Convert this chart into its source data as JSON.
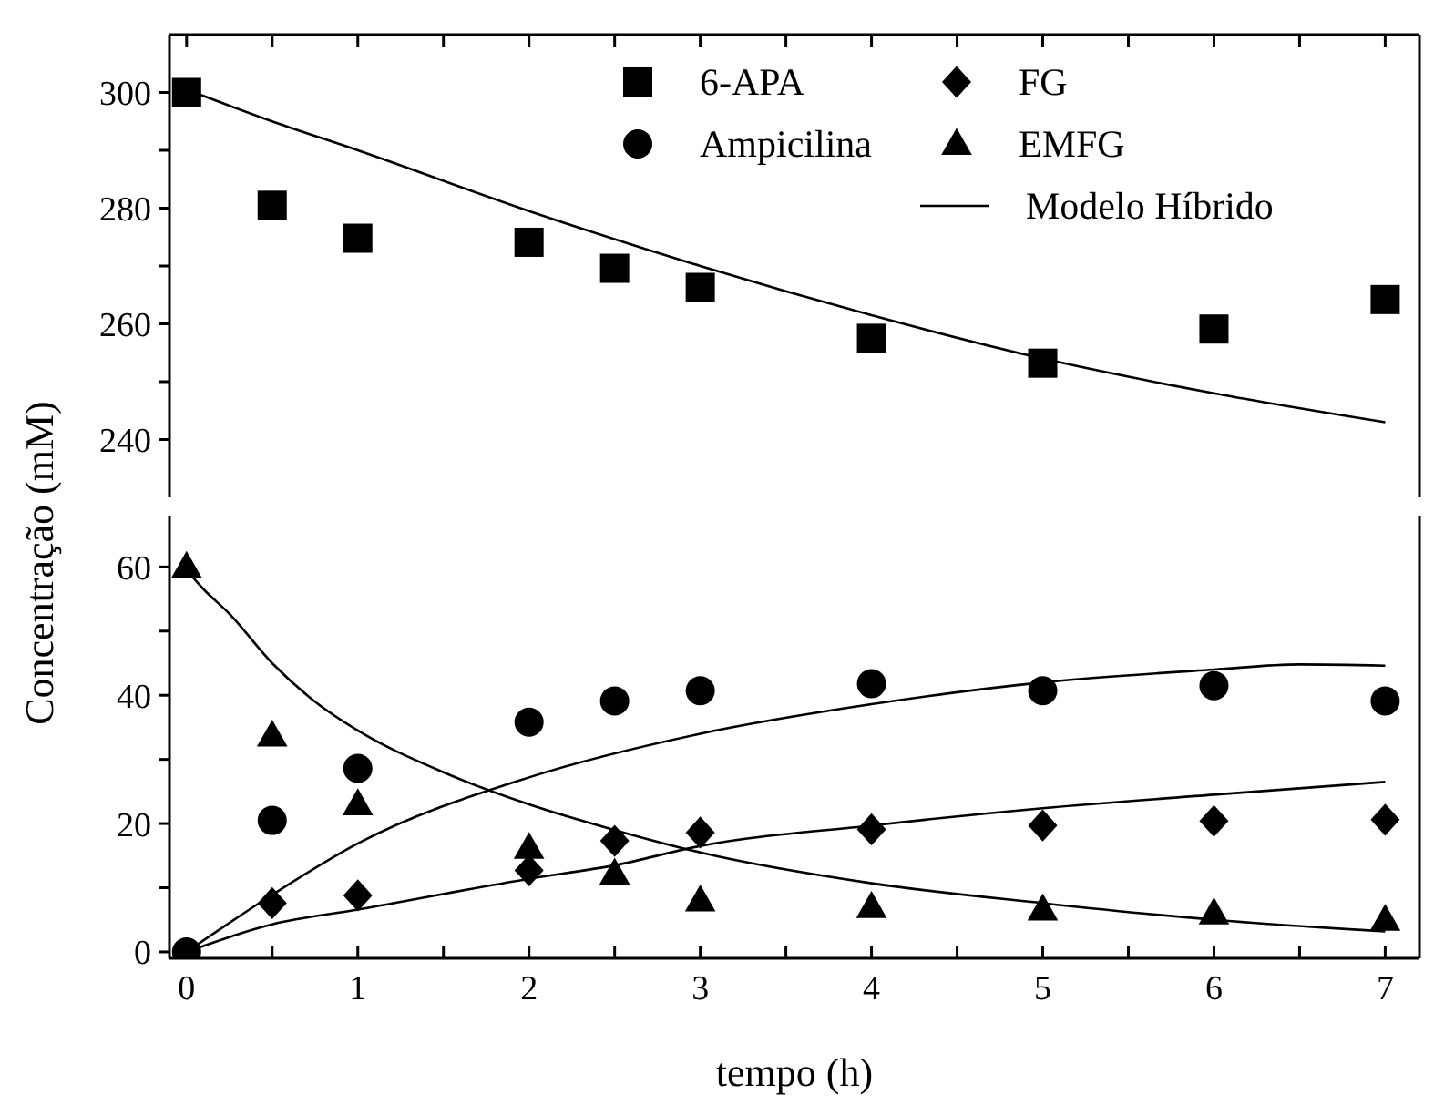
{
  "chart_data": [
    {
      "type": "scatter",
      "xlim": [
        -0.1,
        7.2
      ],
      "xticks": [
        0,
        {
          "value": 0.5,
          "label": null
        },
        1,
        {
          "value": 1.5,
          "label": null
        },
        2,
        {
          "value": 2.5,
          "label": null
        },
        3,
        {
          "value": 3.5,
          "label": null
        },
        4,
        {
          "value": 4.5,
          "label": null
        },
        5,
        {
          "value": 5.5,
          "label": null
        },
        6,
        {
          "value": 6.5,
          "label": null
        },
        7
      ],
      "ylim": [
        230,
        310
      ],
      "yticks": [
        240,
        {
          "value": 250,
          "label": null
        },
        260,
        {
          "value": 270,
          "label": null
        },
        280,
        {
          "value": 290,
          "label": null
        },
        300
      ],
      "tick_labels": "y",
      "legend": "top right",
      "series": [
        {
          "name": "6-APA",
          "marker": "square",
          "color": "#000000",
          "x": [
            0,
            0.5,
            1,
            2,
            2.5,
            3,
            4,
            5,
            6,
            7
          ],
          "values": [
            300,
            280.5,
            274.8,
            274.1,
            269.6,
            266.3,
            257.5,
            253.2,
            259.1,
            264.2
          ]
        },
        {
          "name": "Modelo Híbrido",
          "type": "line",
          "color": "#000000",
          "x": [
            0,
            0.5,
            1,
            2,
            3,
            4,
            5,
            6,
            7
          ],
          "values": [
            300.5,
            295,
            290,
            279.5,
            270,
            261.5,
            254,
            248,
            243
          ]
        }
      ]
    },
    {
      "type": "scatter",
      "xlabel": "tempo (h)",
      "ylabel": "Concentração (mM)",
      "xlim": [
        -0.1,
        7.2
      ],
      "xticks": [
        0,
        {
          "value": 0.5,
          "label": null
        },
        1,
        {
          "value": 1.5,
          "label": null
        },
        2,
        {
          "value": 2.5,
          "label": null
        },
        3,
        {
          "value": 3.5,
          "label": null
        },
        4,
        {
          "value": 4.5,
          "label": null
        },
        5,
        {
          "value": 5.5,
          "label": null
        },
        6,
        {
          "value": 6.5,
          "label": null
        },
        7
      ],
      "ylim": [
        -1,
        68
      ],
      "yticks": [
        0,
        {
          "value": 10,
          "label": null
        },
        20,
        {
          "value": 30,
          "label": null
        },
        40,
        {
          "value": 50,
          "label": null
        },
        60
      ],
      "legend": "top",
      "series": [
        {
          "name": "Ampicilina",
          "marker": "circle",
          "color": "#000000",
          "x": [
            0,
            0.5,
            1,
            2,
            2.5,
            3,
            4,
            5,
            6,
            7
          ],
          "values": [
            0,
            20.5,
            28.6,
            35.8,
            39.1,
            40.7,
            41.8,
            40.7,
            41.5,
            39.1
          ]
        },
        {
          "name": "FG",
          "marker": "diamond",
          "color": "#000000",
          "x": [
            0.5,
            1,
            2,
            2.5,
            3,
            4,
            5,
            6,
            7
          ],
          "values": [
            7.6,
            8.8,
            12.7,
            17.3,
            18.6,
            19.1,
            19.7,
            20.4,
            20.6
          ]
        },
        {
          "name": "EMFG",
          "marker": "triangle",
          "color": "#000000",
          "x": [
            0,
            0.5,
            1,
            2,
            2.5,
            3,
            4,
            5,
            6,
            7
          ],
          "values": [
            60,
            33.7,
            23,
            16.2,
            12.2,
            8,
            7,
            6.6,
            6,
            5
          ]
        },
        {
          "type": "line",
          "color": "#000000",
          "x": [
            0,
            0.5,
            1,
            2,
            3,
            4,
            5,
            6,
            6.5,
            7
          ],
          "values": [
            0,
            8.9,
            16.9,
            27.2,
            34,
            38.6,
            42,
            44,
            44.8,
            44.6
          ]
        },
        {
          "type": "line",
          "color": "#000000",
          "x": [
            0,
            0.5,
            1,
            2,
            2.5,
            3,
            4,
            5,
            6,
            7
          ],
          "values": [
            0,
            4.3,
            6.6,
            11.4,
            13.5,
            16.5,
            19.7,
            22.4,
            24.5,
            26.5
          ]
        },
        {
          "type": "line",
          "color": "#000000",
          "x": [
            0,
            0.1,
            0.25,
            0.5,
            0.75,
            1,
            1.5,
            2,
            2.5,
            3,
            4,
            5,
            6,
            7
          ],
          "values": [
            59.5,
            56.5,
            52.7,
            45,
            39,
            34.5,
            28,
            23,
            19,
            15.5,
            10.7,
            7.6,
            5,
            3.2
          ]
        }
      ]
    }
  ]
}
